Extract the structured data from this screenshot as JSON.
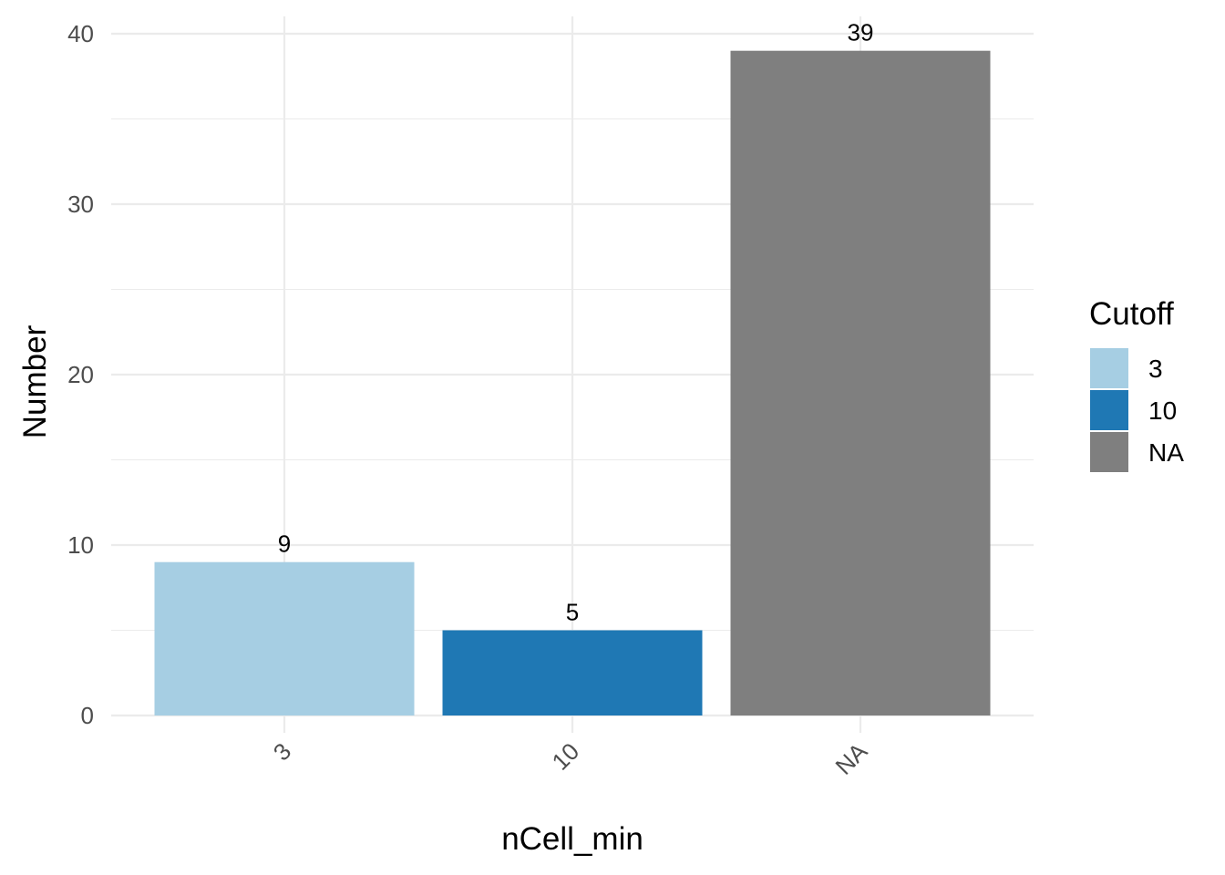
{
  "chart_data": {
    "type": "bar",
    "categories": [
      "3",
      "10",
      "NA"
    ],
    "values": [
      9,
      5,
      39
    ],
    "data_labels": [
      "9",
      "5",
      "39"
    ],
    "colors": [
      "#A6CEE3",
      "#1F78B4",
      "#7F7F7F"
    ],
    "xlabel": "nCell_min",
    "ylabel": "Number",
    "ylim": [
      0,
      40
    ],
    "yticks": [
      0,
      10,
      20,
      30,
      40
    ],
    "ytick_labels": [
      "0",
      "10",
      "20",
      "30",
      "40"
    ],
    "grid": true,
    "legend": {
      "title": "Cutoff",
      "position": "right",
      "entries": [
        "3",
        "10",
        "NA"
      ]
    }
  }
}
